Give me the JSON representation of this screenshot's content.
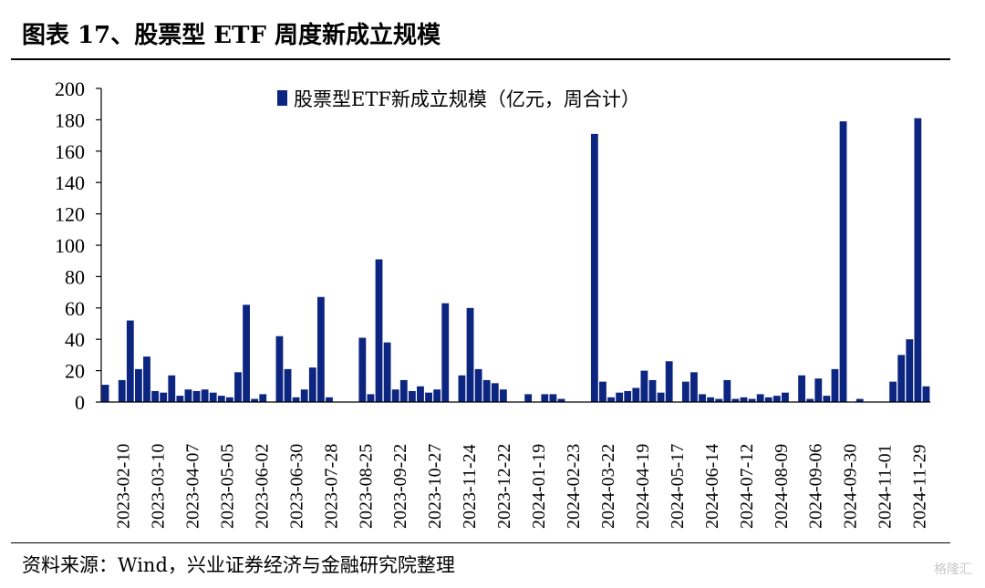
{
  "header": {
    "title": "图表 17、股票型 ETF 周度新成立规模"
  },
  "footer": {
    "source": "资料来源：Wind，兴业证券经济与金融研究院整理",
    "watermark": "格隆汇"
  },
  "chart_data": {
    "type": "bar",
    "title": "",
    "xlabel": "",
    "ylabel": "",
    "ylim": [
      0,
      200
    ],
    "yticks": [
      0,
      20,
      40,
      60,
      80,
      100,
      120,
      140,
      160,
      180,
      200
    ],
    "legend": "top-center",
    "color": "#0c2580",
    "tick_labels": [
      "2023-02-10",
      "2023-03-10",
      "2023-04-07",
      "2023-05-05",
      "2023-06-02",
      "2023-06-30",
      "2023-07-28",
      "2023-08-25",
      "2023-09-22",
      "2023-10-27",
      "2023-11-24",
      "2023-12-22",
      "2024-01-19",
      "2024-02-23",
      "2024-03-22",
      "2024-04-19",
      "2024-05-17",
      "2024-06-14",
      "2024-07-12",
      "2024-08-09",
      "2024-09-06",
      "2024-09-30",
      "2024-11-01",
      "2024-11-29"
    ],
    "series": [
      {
        "name": "股票型ETF新成立规模（亿元，周合计）",
        "values": [
          11,
          0,
          14,
          52,
          21,
          29,
          7,
          6,
          17,
          4,
          8,
          7,
          8,
          6,
          4,
          3,
          19,
          62,
          2,
          5,
          0,
          42,
          21,
          3,
          8,
          22,
          67,
          3,
          0,
          0,
          0,
          41,
          5,
          91,
          38,
          8,
          14,
          7,
          10,
          6,
          8,
          63,
          0,
          17,
          60,
          21,
          14,
          12,
          8,
          0,
          0,
          5,
          0,
          5,
          5,
          2,
          0,
          0,
          0,
          171,
          13,
          3,
          6,
          7,
          9,
          20,
          14,
          6,
          26,
          0,
          13,
          19,
          5,
          3,
          2,
          14,
          2,
          3,
          2,
          5,
          3,
          4,
          6,
          0,
          17,
          2,
          15,
          4,
          21,
          179,
          0,
          2,
          0,
          0,
          0,
          13,
          30,
          40,
          181,
          10
        ]
      }
    ]
  }
}
